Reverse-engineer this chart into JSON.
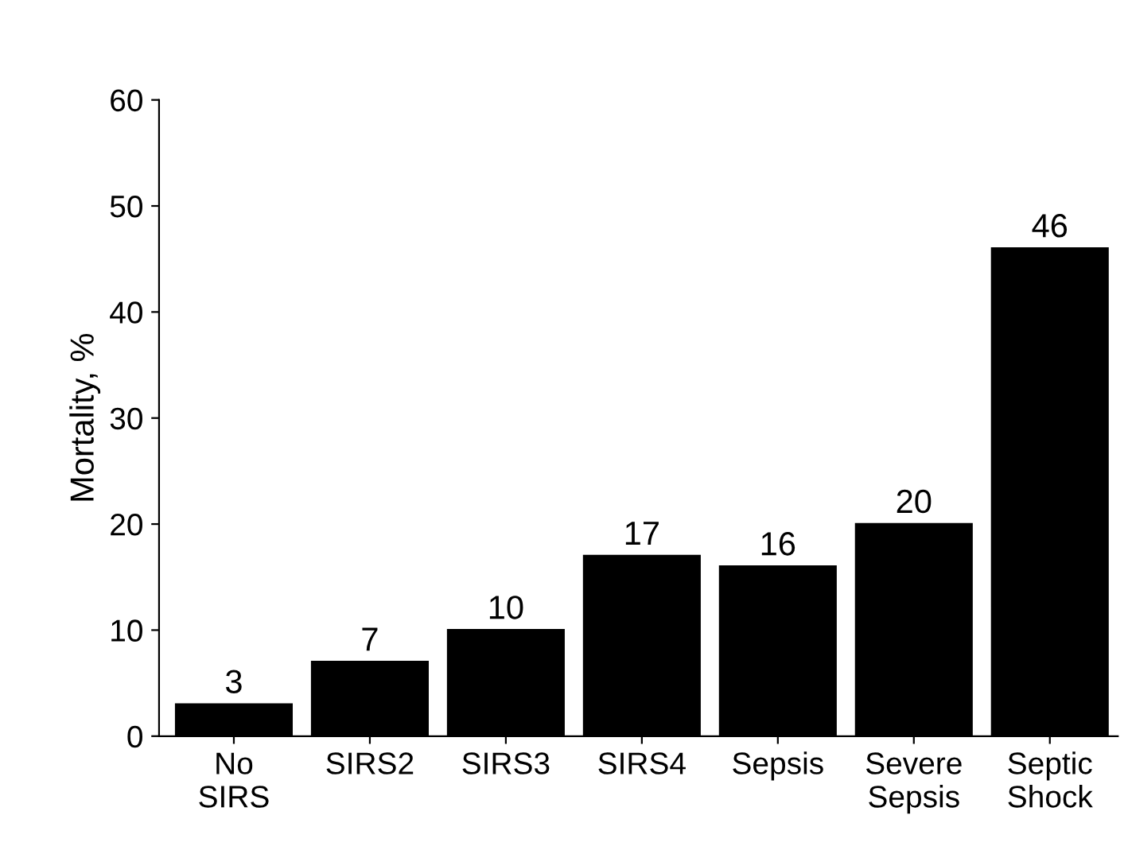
{
  "chart_data": {
    "type": "bar",
    "ylabel": "Mortality, %",
    "categories": [
      "No\nSIRS",
      "SIRS2",
      "SIRS3",
      "SIRS4",
      "Sepsis",
      "Severe\nSepsis",
      "Septic\nShock"
    ],
    "values": [
      3,
      7,
      10,
      17,
      16,
      20,
      46
    ],
    "color": "#000000",
    "ylim": [
      0,
      60
    ],
    "yticks": [
      0,
      10,
      20,
      30,
      40,
      50,
      60
    ],
    "data_labels": true,
    "grid": false,
    "legend": false
  }
}
